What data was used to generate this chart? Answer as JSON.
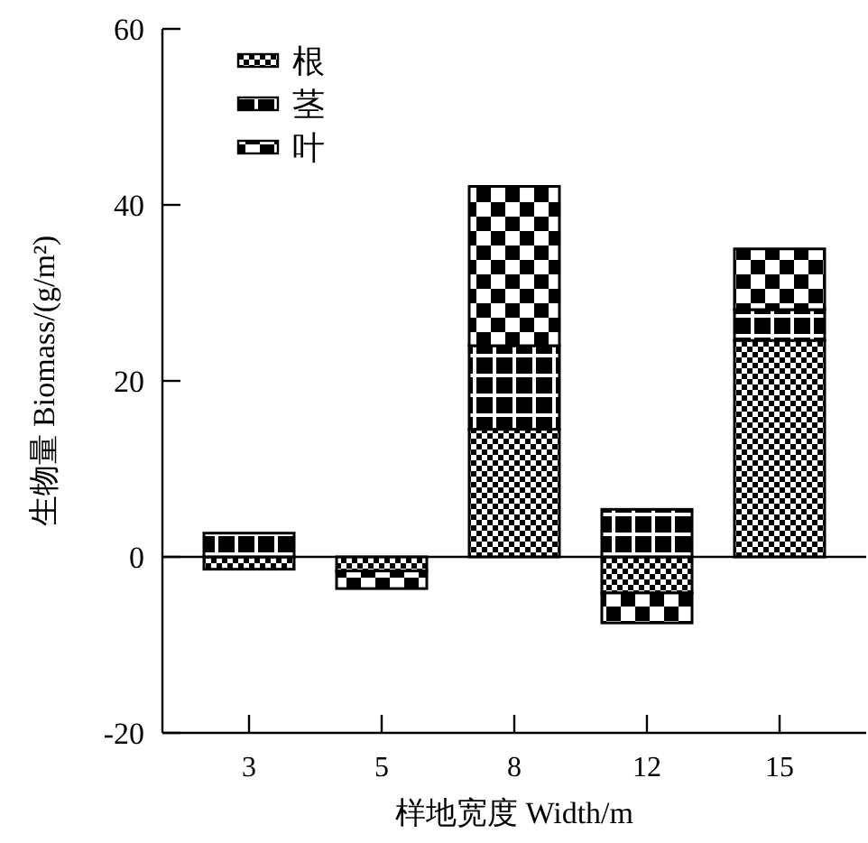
{
  "chart_data": {
    "type": "bar",
    "stacked": true,
    "xlabel": "样地宽度 Width/m",
    "ylabel": "生物量 Biomass/(g/m²)",
    "categories": [
      "3",
      "5",
      "8",
      "12",
      "15"
    ],
    "series": [
      {
        "name": "根",
        "color": "#000000",
        "values": [
          -1.4,
          -1.6,
          14.5,
          -4.1,
          24.6
        ]
      },
      {
        "name": "茎",
        "color": "#000000",
        "values": [
          2.7,
          null,
          9.5,
          5.4,
          3.5
        ]
      },
      {
        "name": "叶",
        "color": "#000000",
        "values": [
          null,
          -2.0,
          18.1,
          -3.4,
          6.9
        ]
      }
    ],
    "ylim": [
      -20,
      60
    ],
    "yticks": [
      -20,
      0,
      20,
      40,
      60
    ],
    "legend": "top left"
  }
}
